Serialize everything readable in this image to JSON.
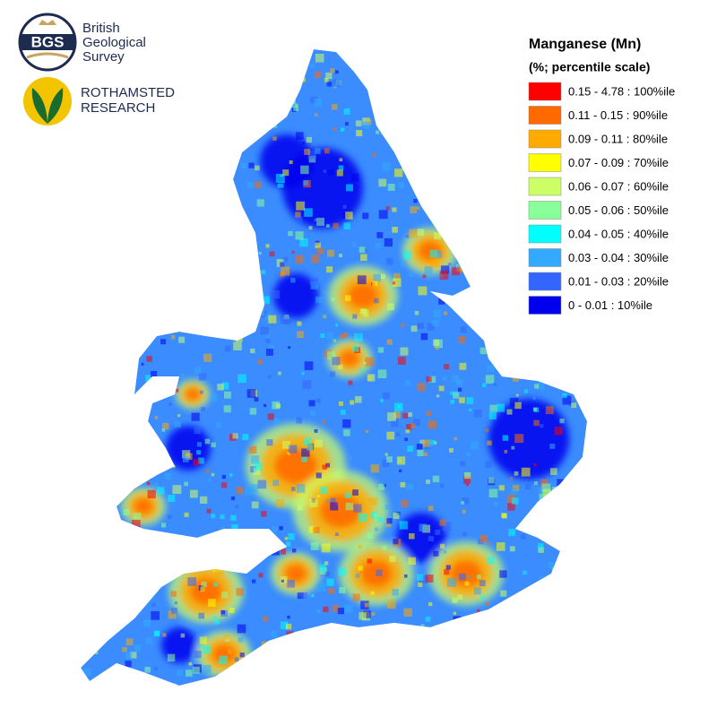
{
  "logos": {
    "bgs": {
      "initials": "BGS",
      "name_lines": [
        "British",
        "Geological",
        "Survey"
      ]
    },
    "rothamsted": {
      "name_lines": [
        "ROTHAMSTED",
        "RESEARCH"
      ]
    }
  },
  "legend": {
    "title": "Manganese (Mn)",
    "subtitle": "(%; percentile scale)",
    "items": [
      {
        "label": "0.15 - 4.78 : 100%ile",
        "color": "#ff0000"
      },
      {
        "label": "0.11 - 0.15 : 90%ile",
        "color": "#ff6a00"
      },
      {
        "label": "0.09 - 0.11 : 80%ile",
        "color": "#ffaa00"
      },
      {
        "label": "0.07 - 0.09 : 70%ile",
        "color": "#ffff00"
      },
      {
        "label": "0.06 - 0.07 : 60%ile",
        "color": "#ccff66"
      },
      {
        "label": "0.05 - 0.06 : 50%ile",
        "color": "#88ff99"
      },
      {
        "label": "0.04 - 0.05 : 40%ile",
        "color": "#00ffff"
      },
      {
        "label": "0.03 - 0.04 : 30%ile",
        "color": "#33aaff"
      },
      {
        "label": "0.01 - 0.03 : 20%ile",
        "color": "#3366ff"
      },
      {
        "label": "0 - 0.01 : 10%ile",
        "color": "#0000ee"
      }
    ]
  }
}
